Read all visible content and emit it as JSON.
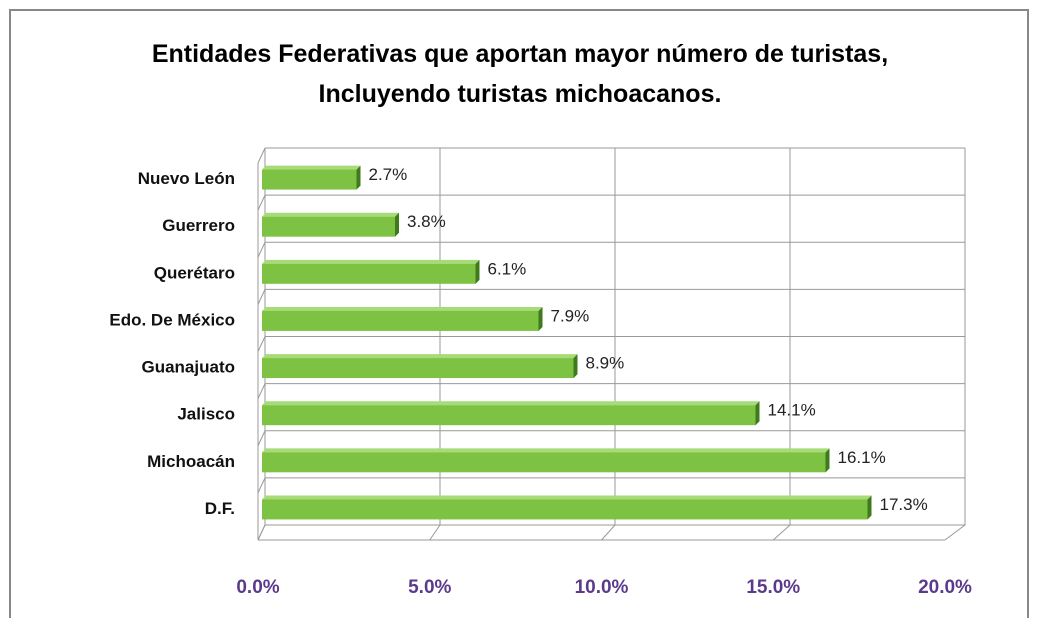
{
  "chart_data": {
    "type": "bar",
    "orientation": "horizontal",
    "title": "Entidades Federativas que aportan mayor número de turistas, Incluyendo turistas michoacanos.",
    "categories": [
      "Nuevo León",
      "Guerrero",
      "Querétaro",
      "Edo. De México",
      "Guanajuato",
      "Jalisco",
      "Michoacán",
      "D.F."
    ],
    "values": [
      2.7,
      3.8,
      6.1,
      7.9,
      8.9,
      14.1,
      16.1,
      17.3
    ],
    "value_labels": [
      "2.7%",
      "3.8%",
      "6.1%",
      "7.9%",
      "8.9%",
      "14.1%",
      "16.1%",
      "17.3%"
    ],
    "color": "#7dc243",
    "xlim": [
      0,
      20
    ],
    "xticks": [
      {
        "value": 0,
        "label": "0.0%"
      },
      {
        "value": 5,
        "label": "5.0%"
      },
      {
        "value": 10,
        "label": "10.0%"
      },
      {
        "value": 15,
        "label": "15.0%"
      },
      {
        "value": 20,
        "label": "20.0%"
      }
    ],
    "grid": true
  }
}
